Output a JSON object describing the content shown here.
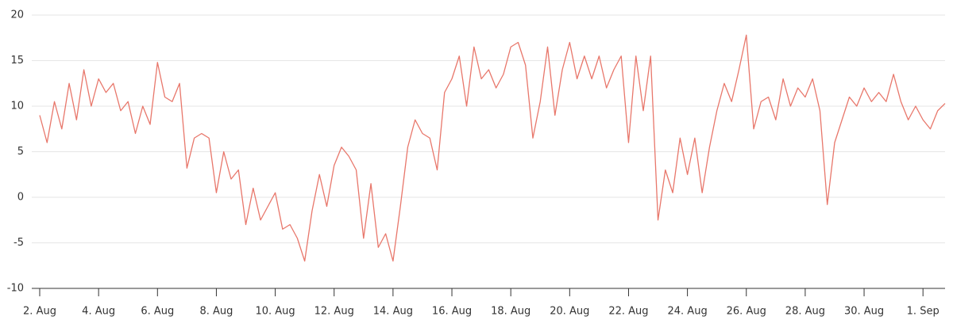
{
  "chart_data": {
    "type": "line",
    "x": [
      0,
      0.25,
      0.5,
      0.75,
      1,
      1.25,
      1.5,
      1.75,
      2,
      2.25,
      2.5,
      2.75,
      3,
      3.25,
      3.5,
      3.75,
      4,
      4.25,
      4.5,
      4.75,
      5,
      5.25,
      5.5,
      5.75,
      6,
      6.25,
      6.5,
      6.75,
      7,
      7.25,
      7.5,
      7.75,
      8,
      8.25,
      8.5,
      8.75,
      9,
      9.25,
      9.5,
      9.75,
      10,
      10.25,
      10.5,
      10.75,
      11,
      11.25,
      11.5,
      11.75,
      12,
      12.25,
      12.5,
      12.75,
      13,
      13.25,
      13.5,
      13.75,
      14,
      14.25,
      14.5,
      14.75,
      15,
      15.25,
      15.5,
      15.75,
      16,
      16.25,
      16.5,
      16.75,
      17,
      17.25,
      17.5,
      17.75,
      18,
      18.25,
      18.5,
      18.75,
      19,
      19.25,
      19.5,
      19.75,
      20,
      20.25,
      20.5,
      20.75,
      21,
      21.25,
      21.5,
      21.75,
      22,
      22.25,
      22.5,
      22.75,
      23,
      23.25,
      23.5,
      23.75,
      24,
      24.25,
      24.5,
      24.75,
      25,
      25.25,
      25.5,
      25.75,
      26,
      26.25,
      26.5,
      26.75,
      27,
      27.25,
      27.5,
      27.75,
      28,
      28.25,
      28.5,
      28.75,
      29,
      29.25,
      29.5,
      29.75,
      30,
      30.25,
      30.5,
      30.75
    ],
    "series": [
      {
        "color": "#e8776b",
        "values": [
          9,
          6,
          10.5,
          7.5,
          12.5,
          8.5,
          14,
          10,
          13,
          11.5,
          12.5,
          9.5,
          10.5,
          7,
          10,
          8,
          14.8,
          11,
          10.5,
          12.5,
          3.2,
          6.5,
          7,
          6.5,
          0.5,
          5,
          2,
          3,
          -3,
          1,
          -2.5,
          -1,
          0.5,
          -3.5,
          -3,
          -4.5,
          -7,
          -1.5,
          2.5,
          -1,
          3.5,
          5.5,
          4.5,
          3,
          -4.5,
          1.5,
          -5.5,
          -4,
          -7,
          -1,
          5.5,
          8.5,
          7,
          6.5,
          3,
          11.5,
          13,
          15.5,
          10,
          16.5,
          13,
          14,
          12,
          13.5,
          16.5,
          17,
          14.5,
          6.5,
          10.5,
          16.5,
          9,
          14,
          17,
          13,
          15.5,
          13,
          15.5,
          12,
          14,
          15.5,
          6,
          15.5,
          9.5,
          15.5,
          -2.5,
          3,
          0.5,
          6.5,
          2.5,
          6.5,
          0.5,
          5.5,
          9.5,
          12.5,
          10.5,
          14,
          17.8,
          7.5,
          10.5,
          11,
          8.5,
          13,
          10,
          12,
          11,
          13,
          9.5,
          -0.8,
          6,
          8.5,
          11,
          10,
          12,
          10.5,
          11.5,
          10.5,
          13.5,
          10.5,
          8.5,
          10,
          8.5,
          7.5,
          9.5,
          10.3
        ]
      }
    ],
    "xlim": [
      0,
      30.75
    ],
    "xticks": [
      {
        "value": 0,
        "label": "2. Aug"
      },
      {
        "value": 2,
        "label": "4. Aug"
      },
      {
        "value": 4,
        "label": "6. Aug"
      },
      {
        "value": 6,
        "label": "8. Aug"
      },
      {
        "value": 8,
        "label": "10. Aug"
      },
      {
        "value": 10,
        "label": "12. Aug"
      },
      {
        "value": 12,
        "label": "14. Aug"
      },
      {
        "value": 14,
        "label": "16. Aug"
      },
      {
        "value": 16,
        "label": "18. Aug"
      },
      {
        "value": 18,
        "label": "20. Aug"
      },
      {
        "value": 20,
        "label": "22. Aug"
      },
      {
        "value": 22,
        "label": "24. Aug"
      },
      {
        "value": 24,
        "label": "26. Aug"
      },
      {
        "value": 26,
        "label": "28. Aug"
      },
      {
        "value": 28,
        "label": "30. Aug"
      },
      {
        "value": 30,
        "label": "1. Sep"
      }
    ],
    "ylim": [
      -10,
      20
    ],
    "yticks": [
      -10,
      -5,
      0,
      5,
      10,
      15,
      20
    ],
    "grid": true
  }
}
